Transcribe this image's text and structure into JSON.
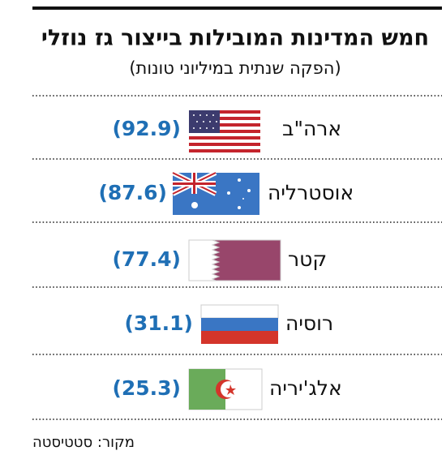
{
  "header": {
    "title": "חמש המדינות המובילות בייצור גז נוזלי",
    "subtitle": "(הפקה שנתית במיליוני טונות)"
  },
  "rows": [
    {
      "country": "ארה\"ב",
      "value": "(92.9)"
    },
    {
      "country": "אוסטרליה",
      "value": "(87.6)"
    },
    {
      "country": "קטר",
      "value": "(77.4)"
    },
    {
      "country": "רוסיה",
      "value": "(31.1)"
    },
    {
      "country": "אלג'יריה",
      "value": "(25.3)"
    }
  ],
  "source": "מקור: סטטיסטה"
}
